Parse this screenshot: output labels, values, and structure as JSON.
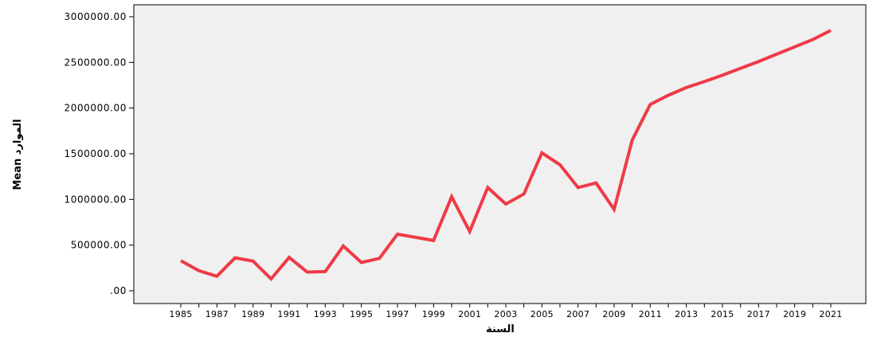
{
  "chart_data": {
    "type": "line",
    "title": "",
    "xlabel": "السنة",
    "ylabel": "Mean الموارد",
    "ylim": [
      0,
      3000000
    ],
    "y_ticks": [
      ".00",
      "500000.00",
      "1000000.00",
      "1500000.00",
      "2000000.00",
      "2500000.00",
      "3000000.00"
    ],
    "x_ticks": [
      "1985",
      "1987",
      "1989",
      "1991",
      "1993",
      "1995",
      "1997",
      "1999",
      "2001",
      "2003",
      "2005",
      "2007",
      "2009",
      "2011",
      "2013",
      "2015",
      "2017",
      "2019",
      "2021"
    ],
    "grid": false,
    "plot_background": "#f0f0f0",
    "line_color": "#ef3b45",
    "series": [
      {
        "x": [
          1985,
          1986,
          1987,
          1988,
          1989,
          1990,
          1991,
          1992,
          1993,
          1994,
          1995,
          1996,
          1997,
          1998,
          1999,
          2000,
          2001,
          2002,
          2003,
          2004,
          2005,
          2006,
          2007,
          2008,
          2009,
          2010,
          2011,
          2012,
          2013,
          2014,
          2015,
          2016,
          2017,
          2018,
          2019,
          2020,
          2021
        ],
        "values": [
          330000,
          220000,
          160000,
          360000,
          325000,
          130000,
          365000,
          205000,
          210000,
          490000,
          310000,
          355000,
          620000,
          585000,
          550000,
          1030000,
          650000,
          1130000,
          950000,
          1060000,
          1510000,
          1380000,
          1130000,
          1180000,
          890000,
          1650000,
          2040000,
          2140000,
          2225000,
          2290000,
          2360000,
          2435000,
          2510000,
          2590000,
          2670000,
          2750000,
          2850000
        ]
      }
    ]
  }
}
